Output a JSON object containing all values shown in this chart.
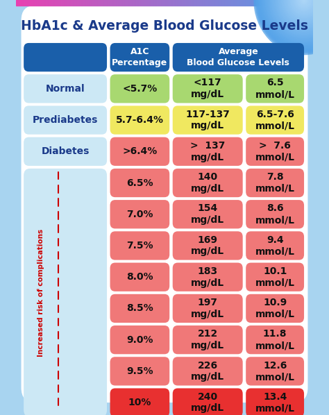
{
  "title": "HbA1c & Average Blood Glucose Levels",
  "title_color": "#1a3a8a",
  "bg_outer": "#a8d4f0",
  "bg_card": "#ffffff",
  "bg_panel": "#cce8f5",
  "header_bg": "#1a5faa",
  "header_texts": [
    "A1C\nPercentage",
    "Average\nBlood Glucose Levels"
  ],
  "rows": [
    {
      "label": "Normal",
      "col1": "<5.7%",
      "col1_bg": "#a8d870",
      "col2": "<117\nmg/dL",
      "col2_bg": "#a8d870",
      "col3": "6.5\nmmol/L",
      "col3_bg": "#a8d870"
    },
    {
      "label": "Prediabetes",
      "col1": "5.7-6.4%",
      "col1_bg": "#f0e860",
      "col2": "117-137\nmg/dL",
      "col2_bg": "#f0e860",
      "col3": "6.5-7.6\nmmol/L",
      "col3_bg": "#f0e860"
    },
    {
      "label": "Diabetes",
      "col1": ">6.4%",
      "col1_bg": "#f07878",
      "col2": ">  137\nmg/dL",
      "col2_bg": "#f07878",
      "col3": ">  7.6\nmmol/L",
      "col3_bg": "#f07878"
    },
    {
      "label": "",
      "col1": "6.5%",
      "col1_bg": "#f07878",
      "col2": "140\nmg/dL",
      "col2_bg": "#f07878",
      "col3": "7.8\nmmol/L",
      "col3_bg": "#f07878"
    },
    {
      "label": "",
      "col1": "7.0%",
      "col1_bg": "#f07878",
      "col2": "154\nmg/dL",
      "col2_bg": "#f07878",
      "col3": "8.6\nmmol/L",
      "col3_bg": "#f07878"
    },
    {
      "label": "",
      "col1": "7.5%",
      "col1_bg": "#f07878",
      "col2": "169\nmg/dL",
      "col2_bg": "#f07878",
      "col3": "9.4\nmmol/L",
      "col3_bg": "#f07878"
    },
    {
      "label": "",
      "col1": "8.0%",
      "col1_bg": "#f07878",
      "col2": "183\nmg/dL",
      "col2_bg": "#f07878",
      "col3": "10.1\nmmol/L",
      "col3_bg": "#f07878"
    },
    {
      "label": "",
      "col1": "8.5%",
      "col1_bg": "#f07878",
      "col2": "197\nmg/dL",
      "col2_bg": "#f07878",
      "col3": "10.9\nmmol/L",
      "col3_bg": "#f07878"
    },
    {
      "label": "",
      "col1": "9.0%",
      "col1_bg": "#f07878",
      "col2": "212\nmg/dL",
      "col2_bg": "#f07878",
      "col3": "11.8\nmmol/L",
      "col3_bg": "#f07878"
    },
    {
      "label": "",
      "col1": "9.5%",
      "col1_bg": "#f07878",
      "col2": "226\nmg/dL",
      "col2_bg": "#f07878",
      "col3": "12.6\nmmol/L",
      "col3_bg": "#f07878"
    },
    {
      "label": "",
      "col1": "10%",
      "col1_bg": "#e83030",
      "col2": "240\nmg/dL",
      "col2_bg": "#e83030",
      "col3": "13.4\nmmol/L",
      "col3_bg": "#e83030"
    }
  ],
  "side_label": "Increased risk of complications",
  "side_label_color": "#cc0000",
  "arrow_color": "#cc0000"
}
